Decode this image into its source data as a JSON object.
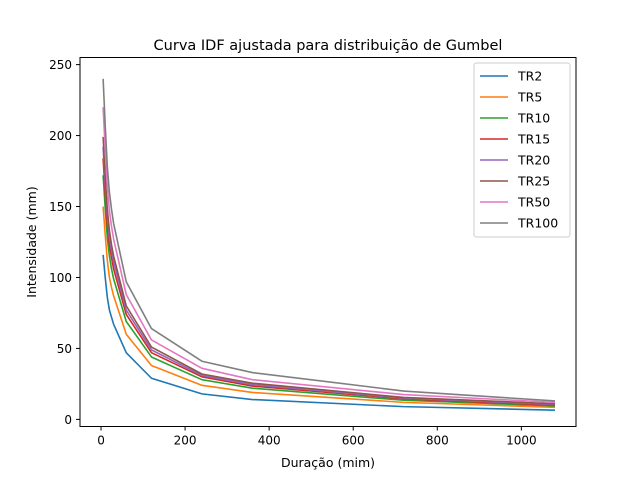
{
  "chart_data": {
    "type": "line",
    "title": "Curva IDF ajustada para distribuição de Gumbel",
    "xlabel": "Duração (mim)",
    "ylabel": "Intensidade (mm)",
    "xlim": [
      -50,
      1130
    ],
    "ylim": [
      -5,
      255
    ],
    "xticks": [
      0,
      200,
      400,
      600,
      800,
      1000
    ],
    "yticks": [
      0,
      50,
      100,
      150,
      200,
      250
    ],
    "grid": false,
    "legend_position": "top-right",
    "x": [
      5,
      10,
      15,
      20,
      25,
      30,
      60,
      120,
      240,
      360,
      720,
      1080
    ],
    "series": [
      {
        "name": "TR2",
        "color": "#1f77b4",
        "values": [
          116,
          100,
          86,
          77,
          72,
          67,
          47,
          29,
          18,
          14,
          9,
          6.5
        ]
      },
      {
        "name": "TR5",
        "color": "#ff7f0e",
        "values": [
          150,
          130,
          112,
          100,
          93,
          87,
          60,
          38,
          24,
          19,
          12,
          8.5
        ]
      },
      {
        "name": "TR10",
        "color": "#2ca02c",
        "values": [
          172,
          149,
          128,
          115,
          106,
          99,
          69,
          44,
          28,
          22,
          13.5,
          9.5
        ]
      },
      {
        "name": "TR15",
        "color": "#d62728",
        "values": [
          184,
          159,
          137,
          123,
          114,
          106,
          74,
          47,
          30,
          23.5,
          14.5,
          10
        ]
      },
      {
        "name": "TR20",
        "color": "#9467bd",
        "values": [
          192,
          166,
          143,
          128,
          119,
          111,
          77,
          49,
          31,
          24.5,
          15,
          10.5
        ]
      },
      {
        "name": "TR25",
        "color": "#8c564b",
        "values": [
          199,
          172,
          148,
          133,
          123,
          115,
          80,
          51,
          32,
          25.5,
          15.5,
          11
        ]
      },
      {
        "name": "TR50",
        "color": "#e377c2",
        "values": [
          220,
          190,
          164,
          147,
          136,
          127,
          88,
          56,
          36,
          28,
          17.5,
          12
        ]
      },
      {
        "name": "TR100",
        "color": "#7f7f7f",
        "values": [
          240,
          207,
          178,
          160,
          148,
          138,
          97,
          64,
          41,
          33,
          20,
          13
        ]
      }
    ]
  }
}
